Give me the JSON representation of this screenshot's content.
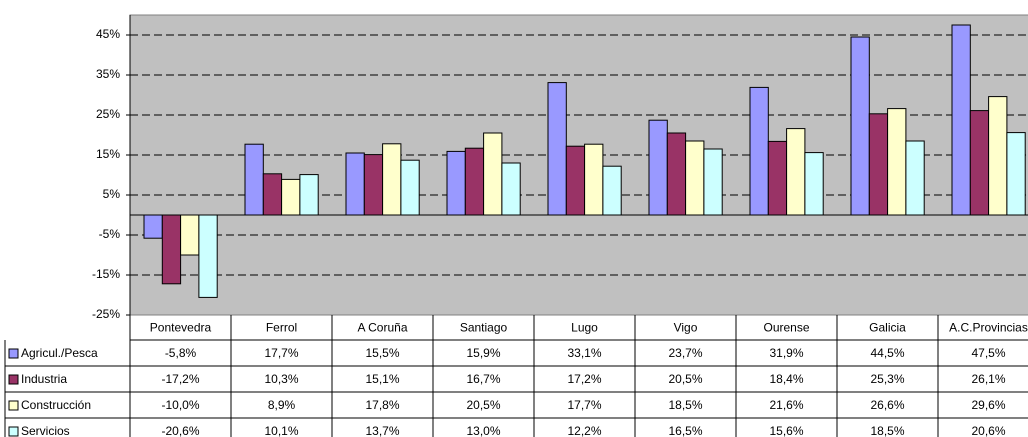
{
  "chart_data": {
    "type": "bar",
    "categories": [
      "Pontevedra",
      "Ferrol",
      "A Coruña",
      "Santiago",
      "Lugo",
      "Vigo",
      "Ourense",
      "Galicia",
      "A.C.Provincias"
    ],
    "series": [
      {
        "name": "Agricul./Pesca",
        "color": "#9999ff",
        "values": [
          -5.8,
          17.7,
          15.5,
          15.9,
          33.1,
          23.7,
          31.9,
          44.5,
          47.5
        ],
        "value_labels": [
          "-5,8%",
          "17,7%",
          "15,5%",
          "15,9%",
          "33,1%",
          "23,7%",
          "31,9%",
          "44,5%",
          "47,5%"
        ]
      },
      {
        "name": "Industria",
        "color": "#993366",
        "values": [
          -17.2,
          10.3,
          15.1,
          16.7,
          17.2,
          20.5,
          18.4,
          25.3,
          26.1
        ],
        "value_labels": [
          "-17,2%",
          "10,3%",
          "15,1%",
          "16,7%",
          "17,2%",
          "20,5%",
          "18,4%",
          "25,3%",
          "26,1%"
        ]
      },
      {
        "name": "Construcción",
        "color": "#ffffcc",
        "values": [
          -10.0,
          8.9,
          17.8,
          20.5,
          17.7,
          18.5,
          21.6,
          26.6,
          29.6
        ],
        "value_labels": [
          "-10,0%",
          "8,9%",
          "17,8%",
          "20,5%",
          "17,7%",
          "18,5%",
          "21,6%",
          "26,6%",
          "29,6%"
        ]
      },
      {
        "name": "Servicios",
        "color": "#ccffff",
        "values": [
          -20.6,
          10.1,
          13.7,
          13.0,
          12.2,
          16.5,
          15.6,
          18.5,
          20.6
        ],
        "value_labels": [
          "-20,6%",
          "10,1%",
          "13,7%",
          "13,0%",
          "12,2%",
          "16,5%",
          "15,6%",
          "18,5%",
          "20,6%"
        ]
      }
    ],
    "ylim": [
      -25,
      50
    ],
    "yticks": [
      {
        "value": -25,
        "label": "-25%"
      },
      {
        "value": -15,
        "label": "-15%"
      },
      {
        "value": -5,
        "label": "-5%"
      },
      {
        "value": 5,
        "label": "5%"
      },
      {
        "value": 15,
        "label": "15%"
      },
      {
        "value": 25,
        "label": "25%"
      },
      {
        "value": 35,
        "label": "35%"
      },
      {
        "value": 45,
        "label": "45%"
      }
    ],
    "grid": true,
    "plot_background": "#c0c0c0"
  }
}
